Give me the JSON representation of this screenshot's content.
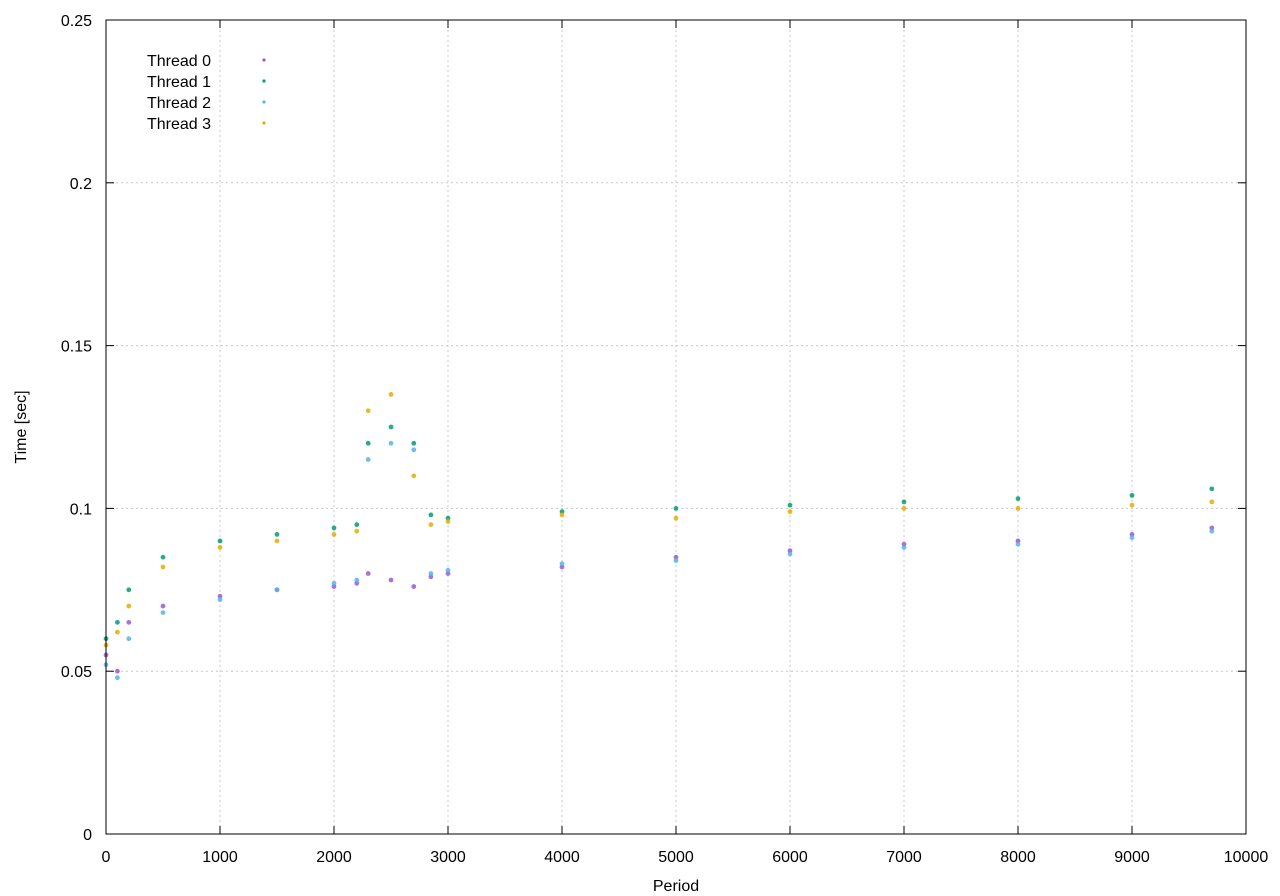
{
  "chart_data": {
    "type": "scatter",
    "title": "",
    "xlabel": "Period",
    "ylabel": "Time [sec]",
    "xlim": [
      0,
      10000
    ],
    "ylim": [
      0,
      0.25
    ],
    "x_ticks": [
      "0",
      "1000",
      "2000",
      "3000",
      "4000",
      "5000",
      "6000",
      "7000",
      "8000",
      "9000",
      "10000"
    ],
    "y_ticks": [
      "0",
      "0.05",
      "0.1",
      "0.15",
      "0.2",
      "0.25"
    ],
    "grid": true,
    "legend_position": "top-left",
    "series": [
      {
        "name": "Thread 0",
        "color": "#9b59d0",
        "x": [
          0,
          100,
          200,
          500,
          1000,
          1500,
          2000,
          2200,
          2300,
          2500,
          2700,
          2850,
          3000,
          4000,
          5000,
          6000,
          7000,
          8000,
          9000,
          9700
        ],
        "values": [
          0.055,
          0.05,
          0.065,
          0.07,
          0.073,
          0.075,
          0.076,
          0.077,
          0.08,
          0.078,
          0.076,
          0.079,
          0.08,
          0.082,
          0.085,
          0.087,
          0.089,
          0.09,
          0.092,
          0.094
        ]
      },
      {
        "name": "Thread 1",
        "color": "#009e73",
        "x": [
          0,
          100,
          200,
          500,
          1000,
          1500,
          2000,
          2200,
          2300,
          2500,
          2700,
          2850,
          3000,
          4000,
          5000,
          6000,
          7000,
          8000,
          9000,
          9700
        ],
        "values": [
          0.06,
          0.065,
          0.075,
          0.085,
          0.09,
          0.092,
          0.094,
          0.095,
          0.12,
          0.125,
          0.12,
          0.098,
          0.097,
          0.099,
          0.1,
          0.101,
          0.102,
          0.103,
          0.104,
          0.106
        ]
      },
      {
        "name": "Thread 2",
        "color": "#56b4e9",
        "x": [
          0,
          100,
          200,
          500,
          1000,
          1500,
          2000,
          2200,
          2300,
          2500,
          2700,
          2850,
          3000,
          4000,
          5000,
          6000,
          7000,
          8000,
          9000,
          9700
        ],
        "values": [
          0.052,
          0.048,
          0.06,
          0.068,
          0.072,
          0.075,
          0.077,
          0.078,
          0.115,
          0.12,
          0.118,
          0.08,
          0.081,
          0.083,
          0.084,
          0.086,
          0.088,
          0.089,
          0.091,
          0.093
        ]
      },
      {
        "name": "Thread 3",
        "color": "#e6ab02",
        "x": [
          0,
          100,
          200,
          500,
          1000,
          1500,
          2000,
          2200,
          2300,
          2500,
          2700,
          2850,
          3000,
          4000,
          5000,
          6000,
          7000,
          8000,
          9000,
          9700
        ],
        "values": [
          0.058,
          0.062,
          0.07,
          0.082,
          0.088,
          0.09,
          0.092,
          0.093,
          0.13,
          0.135,
          0.11,
          0.095,
          0.096,
          0.098,
          0.097,
          0.099,
          0.1,
          0.1,
          0.101,
          0.102
        ]
      }
    ]
  }
}
